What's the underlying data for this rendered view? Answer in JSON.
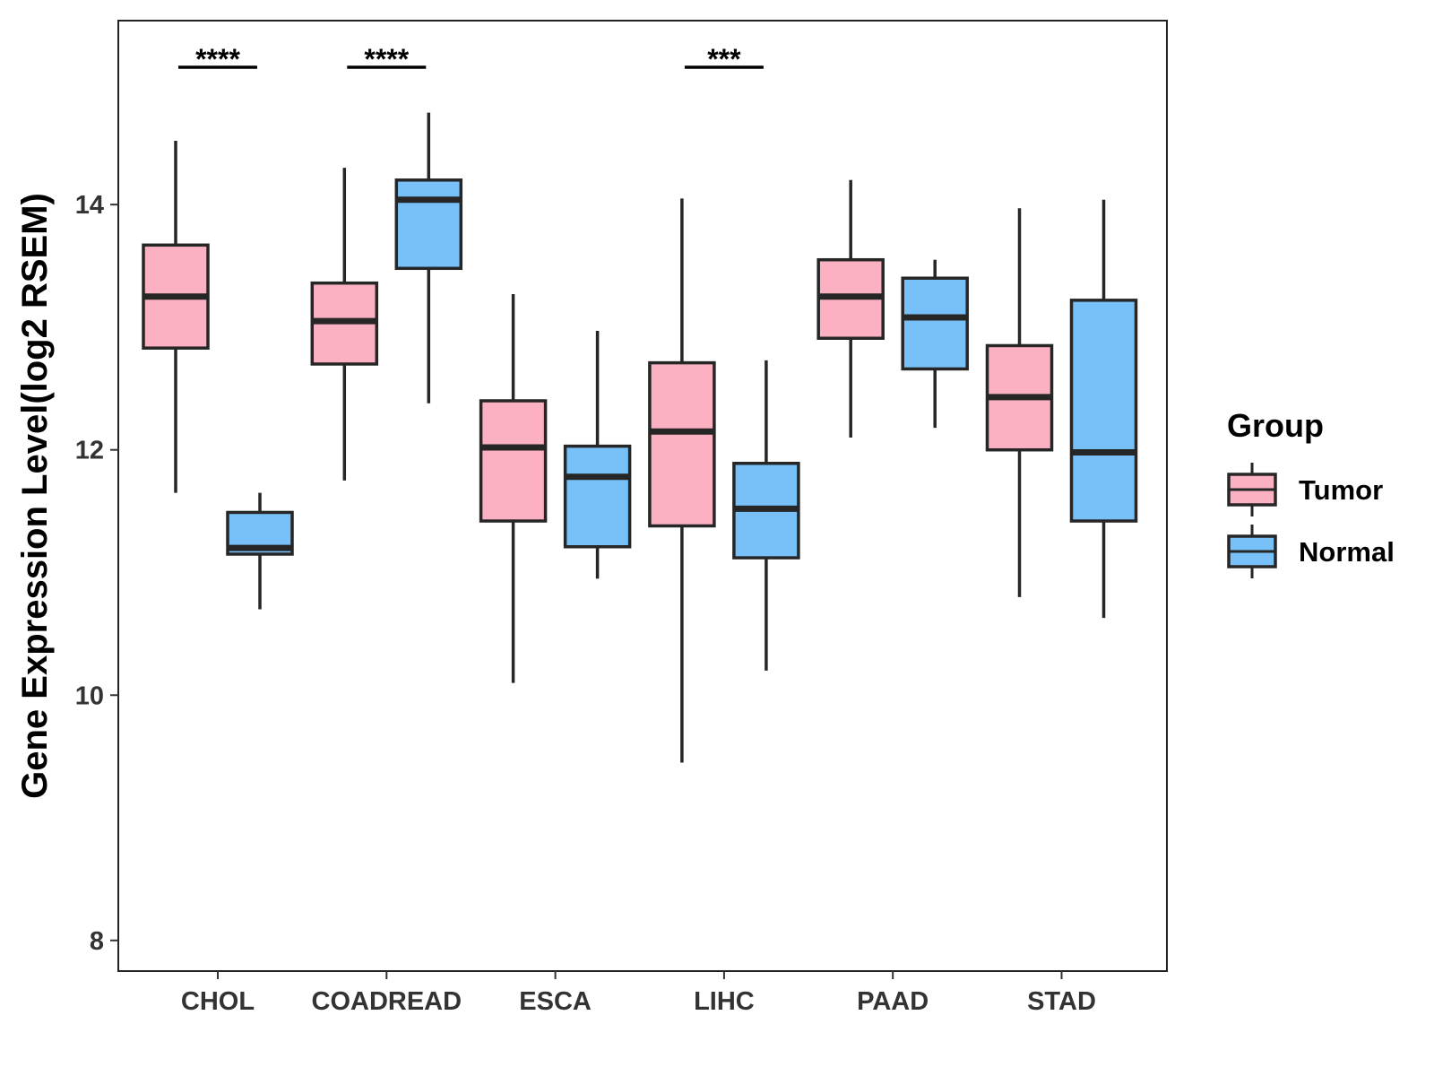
{
  "chart_data": {
    "type": "boxplot",
    "ylabel": "Gene Expression Level(log2 RSEM)",
    "xlabel": "",
    "ylim": [
      7.75,
      15.5
    ],
    "yticks": [
      8,
      10,
      12,
      14
    ],
    "categories": [
      "CHOL",
      "COADREAD",
      "ESCA",
      "LIHC",
      "PAAD",
      "STAD"
    ],
    "legend": {
      "title": "Group",
      "position": "right",
      "entries": [
        "Tumor",
        "Normal"
      ]
    },
    "colors": {
      "Tumor": "#FBB1C2",
      "Normal": "#77C1F8",
      "outline": "#262626",
      "frame": "#222222"
    },
    "series": [
      {
        "name": "Tumor",
        "boxes": [
          {
            "category": "CHOL",
            "whisker_low": 11.65,
            "q1": 12.83,
            "median": 13.25,
            "q3": 13.67,
            "whisker_high": 14.52
          },
          {
            "category": "COADREAD",
            "whisker_low": 11.75,
            "q1": 12.7,
            "median": 13.05,
            "q3": 13.36,
            "whisker_high": 14.3
          },
          {
            "category": "ESCA",
            "whisker_low": 10.1,
            "q1": 11.42,
            "median": 12.02,
            "q3": 12.4,
            "whisker_high": 13.27
          },
          {
            "category": "LIHC",
            "whisker_low": 9.45,
            "q1": 11.38,
            "median": 12.15,
            "q3": 12.71,
            "whisker_high": 14.05
          },
          {
            "category": "PAAD",
            "whisker_low": 12.1,
            "q1": 12.91,
            "median": 13.25,
            "q3": 13.55,
            "whisker_high": 14.2
          },
          {
            "category": "STAD",
            "whisker_low": 10.8,
            "q1": 12.0,
            "median": 12.43,
            "q3": 12.85,
            "whisker_high": 13.97
          }
        ]
      },
      {
        "name": "Normal",
        "boxes": [
          {
            "category": "CHOL",
            "whisker_low": 10.7,
            "q1": 11.15,
            "median": 11.2,
            "q3": 11.49,
            "whisker_high": 11.65
          },
          {
            "category": "COADREAD",
            "whisker_low": 12.38,
            "q1": 13.48,
            "median": 14.04,
            "q3": 14.2,
            "whisker_high": 14.75
          },
          {
            "category": "ESCA",
            "whisker_low": 10.95,
            "q1": 11.21,
            "median": 11.78,
            "q3": 12.03,
            "whisker_high": 12.97
          },
          {
            "category": "LIHC",
            "whisker_low": 10.2,
            "q1": 11.12,
            "median": 11.52,
            "q3": 11.89,
            "whisker_high": 12.73
          },
          {
            "category": "PAAD",
            "whisker_low": 12.18,
            "q1": 12.66,
            "median": 13.08,
            "q3": 13.4,
            "whisker_high": 13.55
          },
          {
            "category": "STAD",
            "whisker_low": 10.63,
            "q1": 11.42,
            "median": 11.98,
            "q3": 13.22,
            "whisker_high": 14.04
          }
        ]
      }
    ],
    "significance": [
      {
        "category": "CHOL",
        "label": "****"
      },
      {
        "category": "COADREAD",
        "label": "****"
      },
      {
        "category": "LIHC",
        "label": "***"
      }
    ]
  }
}
